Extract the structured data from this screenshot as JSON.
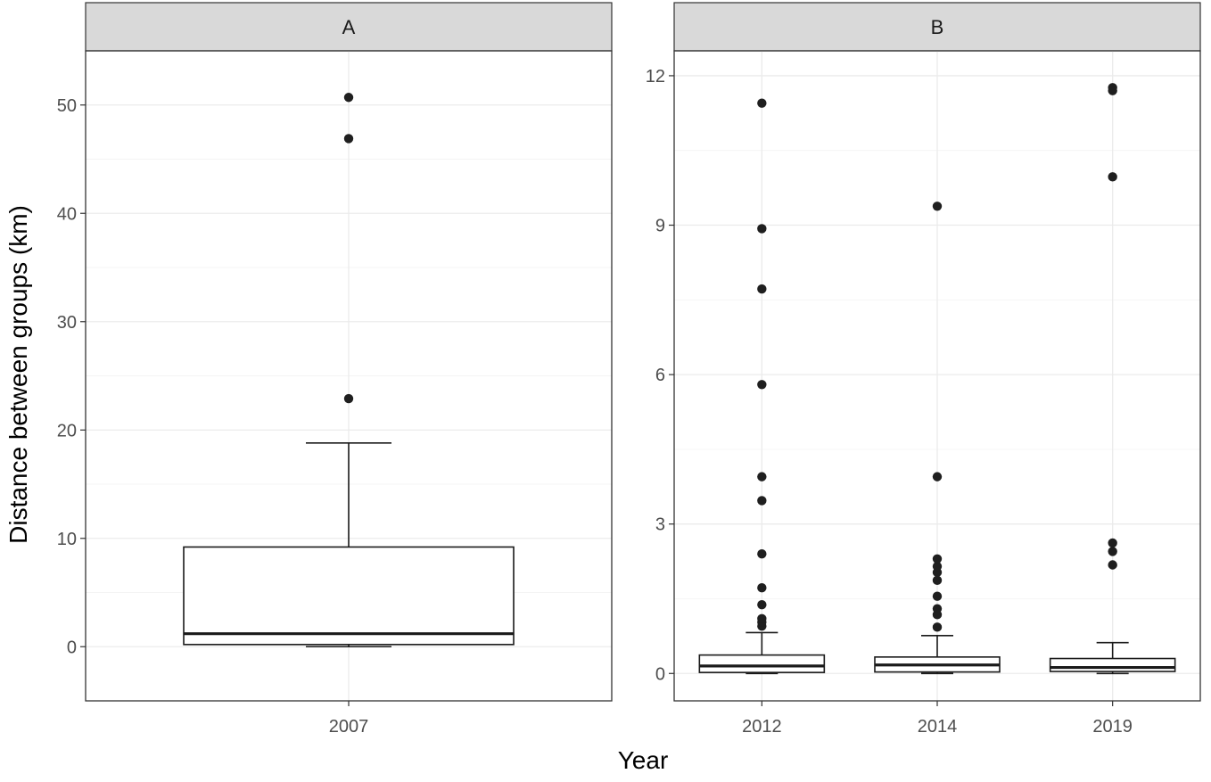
{
  "xlabel": "Year",
  "ylabel": "Distance between groups (km)",
  "chart_data": [
    {
      "panel": "A",
      "type": "box",
      "xlabel": "Year",
      "ylabel": "Distance between groups (km)",
      "ylim": [
        -5,
        55
      ],
      "yticks": [
        0,
        10,
        20,
        30,
        40,
        50
      ],
      "grid": true,
      "categories": [
        "2007"
      ],
      "boxes": [
        {
          "category": "2007",
          "whisker_low": 0.0,
          "q1": 0.2,
          "median": 1.2,
          "q3": 9.2,
          "whisker_high": 18.8,
          "outliers": [
            22.9,
            46.9,
            50.7
          ]
        }
      ]
    },
    {
      "panel": "B",
      "type": "box",
      "xlabel": "Year",
      "ylabel": "Distance between groups (km)",
      "ylim": [
        -0.55,
        12.5
      ],
      "yticks": [
        0,
        3,
        6,
        9,
        12
      ],
      "grid": true,
      "categories": [
        "2012",
        "2014",
        "2019"
      ],
      "boxes": [
        {
          "category": "2012",
          "whisker_low": 0.0,
          "q1": 0.02,
          "median": 0.15,
          "q3": 0.37,
          "whisker_high": 0.82,
          "outliers": [
            0.95,
            1.03,
            1.1,
            1.38,
            1.72,
            2.4,
            3.47,
            3.95,
            5.8,
            7.72,
            8.93,
            11.45
          ]
        },
        {
          "category": "2014",
          "whisker_low": 0.0,
          "q1": 0.03,
          "median": 0.17,
          "q3": 0.33,
          "whisker_high": 0.76,
          "outliers": [
            0.93,
            1.18,
            1.3,
            1.55,
            1.87,
            2.03,
            2.15,
            2.3,
            3.95,
            9.38
          ]
        },
        {
          "category": "2019",
          "whisker_low": 0.0,
          "q1": 0.04,
          "median": 0.12,
          "q3": 0.3,
          "whisker_high": 0.62,
          "outliers": [
            2.18,
            2.45,
            2.62,
            9.97,
            11.7,
            11.76
          ]
        }
      ]
    }
  ]
}
